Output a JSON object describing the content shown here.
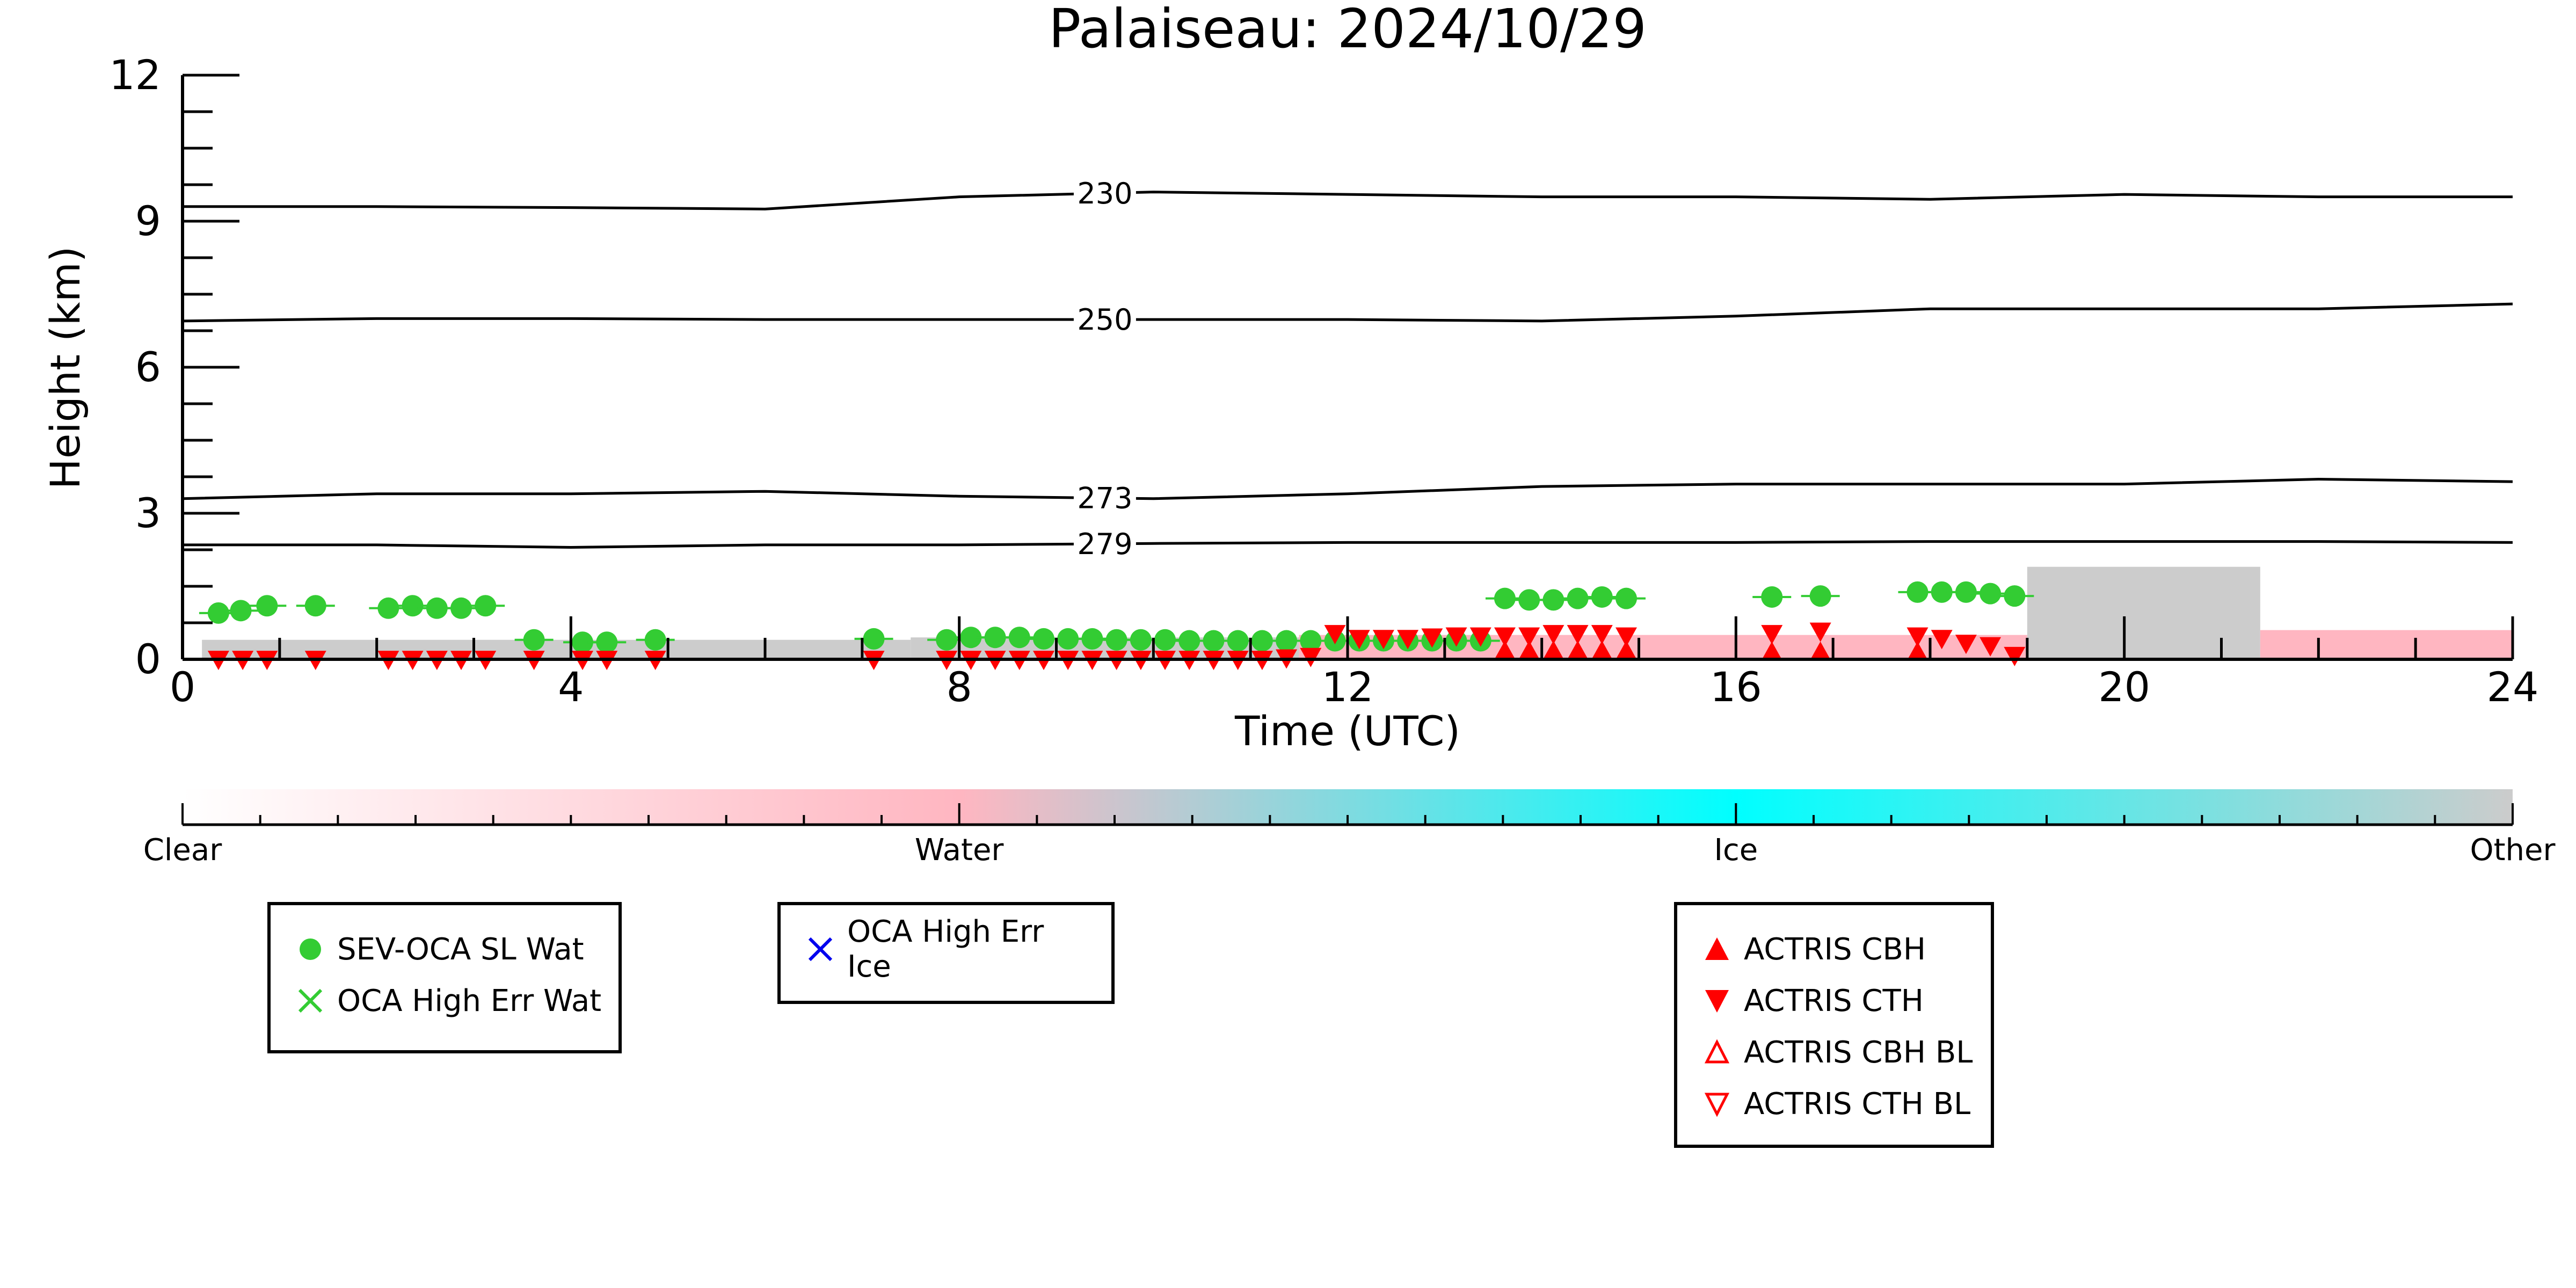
{
  "chart_data": {
    "type": "scatter",
    "title": "Palaiseau: 2024/10/29",
    "xlabel": "Time (UTC)",
    "ylabel": "Height (km)",
    "xlim": [
      0,
      24
    ],
    "ylim": [
      0,
      12
    ],
    "xticks": [
      0,
      4,
      8,
      12,
      16,
      20,
      24
    ],
    "yticks": [
      0,
      3,
      6,
      9,
      12
    ],
    "isotherms": [
      {
        "label": "230",
        "label_x": 9.5,
        "x": [
          0,
          2,
          4,
          6,
          8,
          10,
          12,
          14,
          16,
          18,
          20,
          22,
          24
        ],
        "y": [
          9.3,
          9.3,
          9.28,
          9.25,
          9.5,
          9.6,
          9.55,
          9.5,
          9.5,
          9.45,
          9.55,
          9.5,
          9.5
        ]
      },
      {
        "label": "250",
        "label_x": 9.5,
        "x": [
          0,
          2,
          4,
          6,
          8,
          10,
          12,
          14,
          16,
          18,
          20,
          22,
          24
        ],
        "y": [
          6.95,
          7.0,
          7.0,
          6.98,
          6.98,
          6.98,
          6.98,
          6.95,
          7.05,
          7.2,
          7.2,
          7.2,
          7.3
        ]
      },
      {
        "label": "273",
        "label_x": 9.5,
        "x": [
          0,
          2,
          4,
          6,
          8,
          10,
          12,
          14,
          16,
          18,
          20,
          22,
          24
        ],
        "y": [
          3.3,
          3.4,
          3.4,
          3.45,
          3.35,
          3.3,
          3.4,
          3.55,
          3.6,
          3.6,
          3.6,
          3.7,
          3.65
        ]
      },
      {
        "label": "279",
        "label_x": 9.5,
        "x": [
          0,
          2,
          4,
          6,
          8,
          10,
          12,
          14,
          16,
          18,
          20,
          22,
          24
        ],
        "y": [
          2.35,
          2.35,
          2.3,
          2.35,
          2.35,
          2.38,
          2.4,
          2.4,
          2.4,
          2.42,
          2.42,
          2.42,
          2.4
        ]
      }
    ],
    "background_classes": [
      {
        "class": "Other",
        "color": "#cccccc",
        "x0": 0.2,
        "x1": 7.5,
        "top": 0.4
      },
      {
        "class": "Other",
        "color": "#cccccc",
        "x0": 7.5,
        "x1": 11.5,
        "top": 0.45
      },
      {
        "class": "Water",
        "color": "#ffb6c1",
        "x0": 11.5,
        "x1": 19.0,
        "top": 0.5
      },
      {
        "class": "Other",
        "color": "#cccccc",
        "x0": 19.0,
        "x1": 21.4,
        "top": 1.9
      },
      {
        "class": "Water",
        "color": "#ffb6c1",
        "x0": 21.4,
        "x1": 24.0,
        "top": 0.6
      }
    ],
    "series": [
      {
        "name": "SEV-OCA SL Wat",
        "marker": "circle",
        "color": "#33cc33",
        "x": [
          0.37,
          0.6,
          0.87,
          1.37,
          2.12,
          2.37,
          2.62,
          2.87,
          3.12,
          3.62,
          4.12,
          4.37,
          4.87,
          7.12,
          7.87,
          8.12,
          8.37,
          8.62,
          8.87,
          9.12,
          9.37,
          9.62,
          9.87,
          10.12,
          10.37,
          10.62,
          10.87,
          11.12,
          11.37,
          11.62,
          11.87,
          12.12,
          12.37,
          12.62,
          12.87,
          13.12,
          13.37,
          13.62,
          13.87,
          14.12,
          14.37,
          14.62,
          14.87,
          16.37,
          16.87,
          17.87,
          18.12,
          18.37,
          18.62,
          18.87
        ],
        "y": [
          0.95,
          1.0,
          1.1,
          1.1,
          1.05,
          1.1,
          1.05,
          1.05,
          1.1,
          0.4,
          0.35,
          0.35,
          0.4,
          0.42,
          0.4,
          0.45,
          0.45,
          0.45,
          0.42,
          0.42,
          0.42,
          0.4,
          0.4,
          0.4,
          0.38,
          0.38,
          0.38,
          0.38,
          0.38,
          0.38,
          0.38,
          0.38,
          0.38,
          0.38,
          0.38,
          0.38,
          0.38,
          1.25,
          1.22,
          1.22,
          1.25,
          1.28,
          1.25,
          1.28,
          1.3,
          1.38,
          1.38,
          1.38,
          1.35,
          1.3
        ]
      },
      {
        "name": "OCA High Err Wat",
        "marker": "x",
        "color": "#33cc33",
        "x": [],
        "y": []
      },
      {
        "name": "OCA High Err Ice",
        "marker": "x",
        "color": "#0000ee",
        "x": [],
        "y": []
      },
      {
        "name": "ACTRIS CBH",
        "marker": "triangle-up",
        "color": "#ff0000",
        "x": [
          13.62,
          13.87,
          14.12,
          14.37,
          14.62,
          14.87,
          16.37,
          16.87,
          17.87
        ],
        "y": [
          0.12,
          0.12,
          0.12,
          0.12,
          0.12,
          0.12,
          0.1,
          0.1,
          0.1
        ]
      },
      {
        "name": "ACTRIS CTH",
        "marker": "triangle-down",
        "color": "#ff0000",
        "x": [
          0.37,
          0.62,
          0.87,
          1.37,
          2.12,
          2.37,
          2.62,
          2.87,
          3.12,
          3.62,
          4.12,
          4.37,
          4.87,
          7.12,
          7.87,
          8.12,
          8.37,
          8.62,
          8.87,
          9.12,
          9.37,
          9.62,
          9.87,
          10.12,
          10.37,
          10.62,
          10.87,
          11.12,
          11.37,
          11.62,
          11.87,
          12.12,
          12.37,
          12.62,
          12.87,
          13.12,
          13.37,
          13.62,
          13.87,
          14.12,
          14.37,
          14.62,
          14.87,
          16.37,
          16.87,
          17.87,
          18.12,
          18.37,
          18.62,
          18.87
        ],
        "y": [
          0.02,
          0.02,
          0.02,
          0.02,
          0.02,
          0.02,
          0.02,
          0.02,
          0.02,
          0.02,
          0.02,
          0.02,
          0.02,
          0.02,
          0.02,
          0.02,
          0.02,
          0.02,
          0.02,
          0.02,
          0.02,
          0.02,
          0.02,
          0.02,
          0.02,
          0.02,
          0.02,
          0.02,
          0.05,
          0.08,
          0.55,
          0.45,
          0.45,
          0.45,
          0.48,
          0.5,
          0.5,
          0.5,
          0.5,
          0.55,
          0.55,
          0.55,
          0.5,
          0.55,
          0.6,
          0.5,
          0.45,
          0.35,
          0.3,
          0.1
        ]
      },
      {
        "name": "ACTRIS CBH BL",
        "marker": "triangle-up-open",
        "color": "#ff0000",
        "x": [],
        "y": []
      },
      {
        "name": "ACTRIS CTH BL",
        "marker": "triangle-down-open",
        "color": "#ff0000",
        "x": [],
        "y": []
      }
    ],
    "colorbar": {
      "labels": [
        "Clear",
        "Water",
        "Ice",
        "Other"
      ],
      "colors": [
        "#ffffff",
        "#ffb6c1",
        "#00ffff",
        "#cccccc"
      ]
    },
    "legends": [
      {
        "entries": [
          "SEV-OCA SL Wat",
          "OCA High Err Wat"
        ]
      },
      {
        "entries": [
          "OCA High Err Ice"
        ]
      },
      {
        "entries": [
          "ACTRIS CBH",
          "ACTRIS CTH",
          "ACTRIS CBH BL",
          "ACTRIS CTH BL"
        ]
      }
    ]
  }
}
